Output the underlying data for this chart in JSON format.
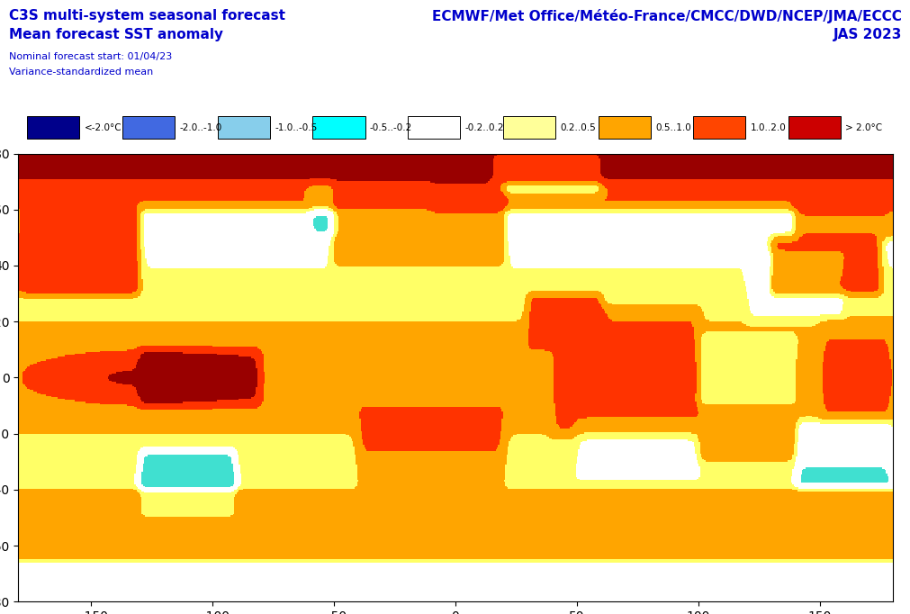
{
  "title_left_line1": "C3S multi-system seasonal forecast",
  "title_left_line2": "Mean forecast SST anomaly",
  "title_left_line3": "Nominal forecast start: 01/04/23",
  "title_left_line4": "Variance-standardized mean",
  "title_right_line1": "ECMWF/Met Office/Météo-France/CMCC/DWD/NCEP/JMA/ECCC",
  "title_right_line2": "JAS 2023",
  "title_color": "#0000CC",
  "subtitle_color": "#0000CC",
  "legend_labels": [
    "<-2.0°C",
    "-2.0..-1.0",
    "-1.0..-0.5",
    "-0.5..-0.2",
    "-0.2..0.2",
    "0.2..0.5",
    "0.5..1.0",
    "1.0..2.0",
    "> 2.0°C"
  ],
  "legend_colors": [
    "#00008B",
    "#4169E1",
    "#87CEEB",
    "#00FFFF",
    "#FFFFFF",
    "#FFFF99",
    "#FFA500",
    "#FF4500",
    "#CC0000"
  ],
  "colormap_levels": [
    -3.0,
    -2.0,
    -1.0,
    -0.5,
    -0.2,
    0.2,
    0.5,
    1.0,
    2.0,
    3.0
  ],
  "land_color": "#D2B48C",
  "ocean_background": "#F5F5DC",
  "border_color": "#555555",
  "grid_color": "#888888",
  "axis_label_color": "#000000",
  "figsize": [
    10.12,
    6.82
  ],
  "dpi": 100
}
